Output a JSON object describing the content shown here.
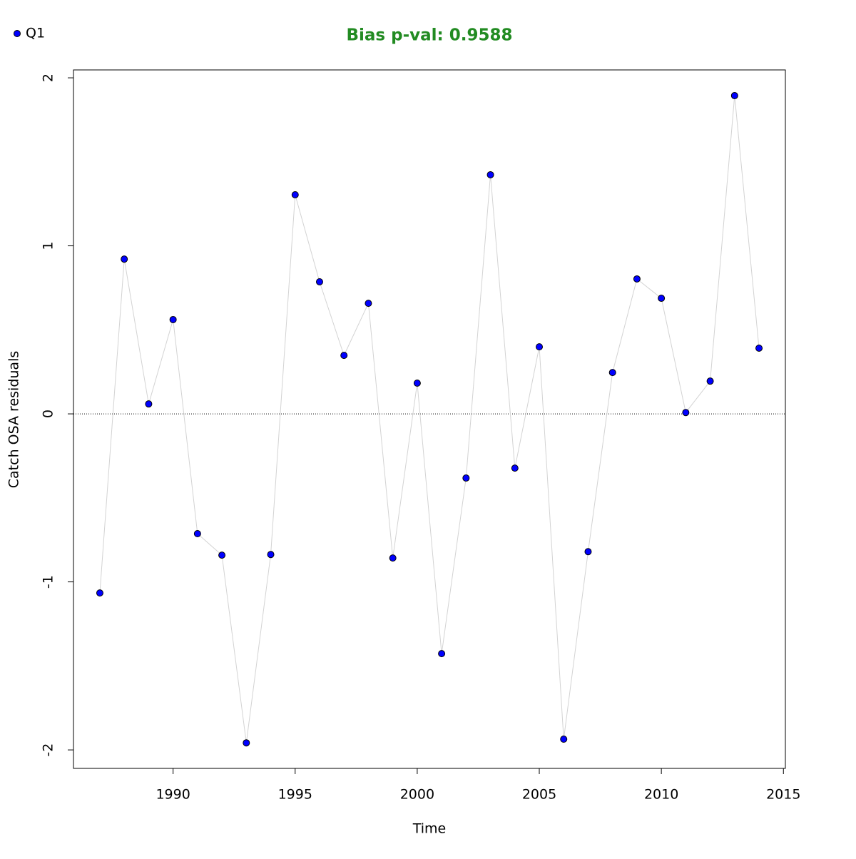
{
  "chart_data": {
    "type": "line",
    "title": "Bias p-val: 0.9588",
    "title_color": "#228b22",
    "x_label": "Time",
    "y_label": "Catch OSA residuals",
    "x": [
      1987,
      1988,
      1989,
      1990,
      1991,
      1992,
      1993,
      1994,
      1995,
      1996,
      1997,
      1998,
      1999,
      2000,
      2001,
      2002,
      2003,
      2004,
      2005,
      2006,
      2007,
      2008,
      2009,
      2010,
      2011,
      2012,
      2013,
      2014
    ],
    "series": [
      {
        "name": "Q1",
        "color": "#0000ff",
        "line_color": "#d3d3d3",
        "values": [
          -1.066,
          0.921,
          0.059,
          0.561,
          -0.713,
          -0.841,
          -1.958,
          -0.837,
          1.304,
          0.786,
          0.348,
          0.658,
          -0.858,
          0.183,
          -1.427,
          -0.382,
          1.423,
          -0.323,
          0.399,
          -1.936,
          -0.82,
          0.246,
          0.803,
          0.688,
          0.008,
          0.195,
          1.894,
          0.391
        ]
      }
    ],
    "xlim": [
      1985.92,
      2015.08
    ],
    "xticks": [
      1990,
      1995,
      2000,
      2005,
      2010,
      2015
    ],
    "ylim": [
      -2.11,
      2.047
    ],
    "yticks": [
      -2,
      -1,
      0,
      1,
      2
    ],
    "reference_line": 0,
    "legend": "top-left"
  }
}
